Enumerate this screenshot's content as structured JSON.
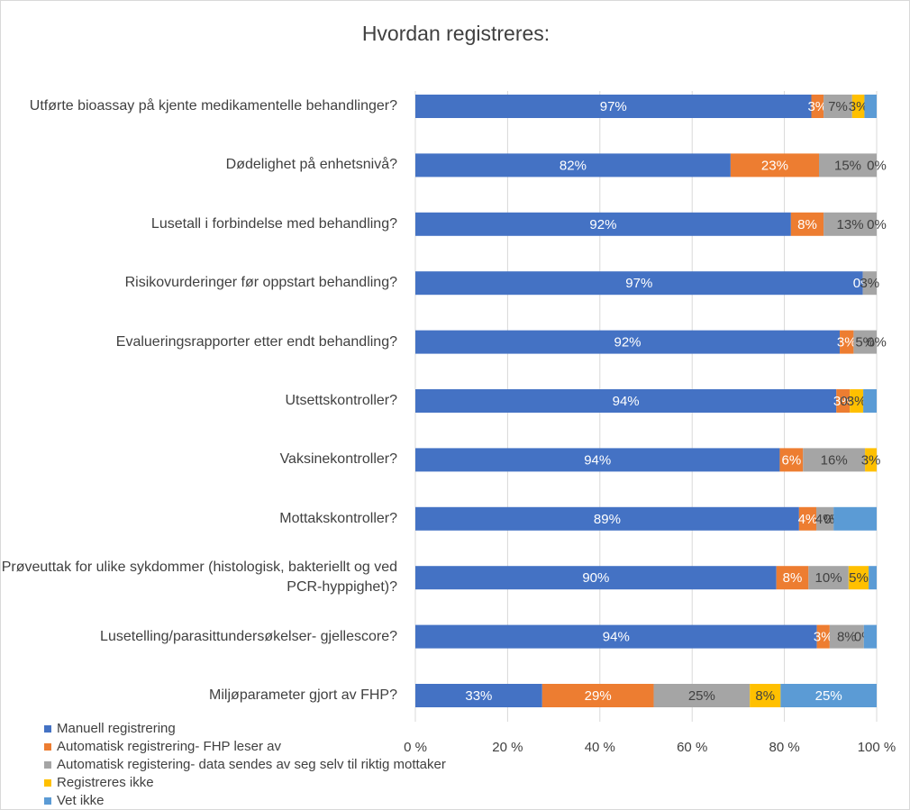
{
  "chart_data": {
    "type": "bar",
    "orientation": "horizontal",
    "stacking": "percent",
    "title": "Hvordan registreres:",
    "categories": [
      "Utførte bioassay på kjente medikamentelle behandlinger?",
      "Dødelighet på enhetsnivå?",
      "Lusetall i forbindelse med behandling?",
      "Risikovurderinger før oppstart behandling?",
      "Evalueringsrapporter etter endt behandling?",
      "Utsettskontroller?",
      "Vaksinekontroller?",
      "Mottakskontroller?",
      "Prøveuttak for ulike sykdommer (histologisk, bakteriellt og ved PCR-hyppighet)?",
      "Lusetelling/parasittundersøkelser- gjellescore?",
      "Miljøparameter gjort av FHP?"
    ],
    "series": [
      {
        "name": "Manuell registrering",
        "color": "#4472c4",
        "values": [
          97,
          82,
          92,
          97,
          92,
          94,
          94,
          89,
          90,
          94,
          33
        ],
        "value_labels": [
          "97%",
          "82%",
          "92%",
          "97%",
          "92%",
          "94%",
          "94%",
          "89%",
          "90%",
          "94%",
          "33%"
        ]
      },
      {
        "name": "Automatisk registrering- FHP leser av",
        "color": "#ed7d31",
        "values": [
          3,
          23,
          8,
          0,
          3,
          3,
          6,
          4,
          8,
          3,
          29
        ],
        "value_labels": [
          "3%",
          "23%",
          "8%",
          "0%",
          "3%",
          "3%",
          "6%",
          "4%",
          "8%",
          "3%",
          "29%"
        ]
      },
      {
        "name": "Automatisk registering- data sendes av seg selv til riktig mottaker",
        "color": "#a5a5a5",
        "values": [
          7,
          15,
          13,
          3,
          5,
          0,
          16,
          4,
          10,
          8,
          25
        ],
        "value_labels": [
          "7%",
          "15%",
          "13%",
          "3%",
          "5%",
          "0%",
          "16%",
          "4%",
          "10%",
          "8%",
          "25%"
        ]
      },
      {
        "name": "Registreres ikke",
        "color": "#ffc000",
        "values": [
          3,
          0,
          0,
          0,
          0,
          3,
          3,
          0,
          5,
          0,
          8
        ],
        "value_labels": [
          "3%",
          "0%",
          "0%",
          null,
          "0%",
          "3%",
          "3%",
          "0%",
          "5%",
          "0%",
          "8%"
        ]
      },
      {
        "name": "Vet ikke",
        "color": "#5b9bd5",
        "values": [
          3,
          0,
          0,
          0,
          0,
          3,
          0,
          10,
          2,
          3,
          25
        ],
        "value_labels": [
          null,
          null,
          null,
          null,
          null,
          null,
          null,
          null,
          null,
          null,
          "25%"
        ]
      }
    ],
    "xlim": [
      0,
      100
    ],
    "xticks": [
      {
        "value": 0,
        "label": "0 %"
      },
      {
        "value": 20,
        "label": "20 %"
      },
      {
        "value": 40,
        "label": "40 %"
      },
      {
        "value": 60,
        "label": "60 %"
      },
      {
        "value": 80,
        "label": "80 %"
      },
      {
        "value": 100,
        "label": "100 %"
      }
    ],
    "grid": true,
    "legend": "bottom-left"
  }
}
